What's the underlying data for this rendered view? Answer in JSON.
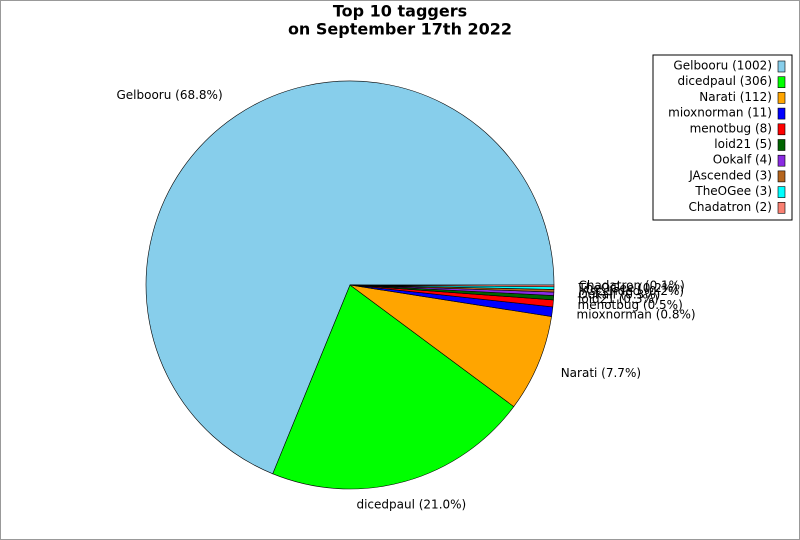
{
  "chart_data": {
    "type": "pie",
    "title": [
      "Top 10 taggers",
      "on September 17th 2022"
    ],
    "categories": [
      "Gelbooru (1002)",
      "dicedpaul (306)",
      "Narati (112)",
      "mioxnorman (11)",
      "menotbug (8)",
      "loid21 (5)",
      "Ookalf (4)",
      "JAscended (3)",
      "TheOGee (3)",
      "Chadatron (2)"
    ],
    "values": [
      1002,
      306,
      112,
      11,
      8,
      5,
      4,
      3,
      3,
      2
    ],
    "value_labels": [
      "Gelbooru (68.8%)",
      "dicedpaul (21.0%)",
      "Narati (7.7%)",
      "mioxnorman (0.8%)",
      "menotbug (0.5%)",
      "loid21 (0.3%)",
      "Ookalf (0.3%)",
      "JAscended (0.2%)",
      "TheOGee (0.2%)",
      "Chadatron (0.1%)"
    ],
    "colors": [
      "#87ceeb",
      "#00ff00",
      "#ffa500",
      "#0000ff",
      "#ff0000",
      "#006400",
      "#8a2be2",
      "#b5651d",
      "#00ffff",
      "#fa8072"
    ],
    "legend": "upper right"
  }
}
